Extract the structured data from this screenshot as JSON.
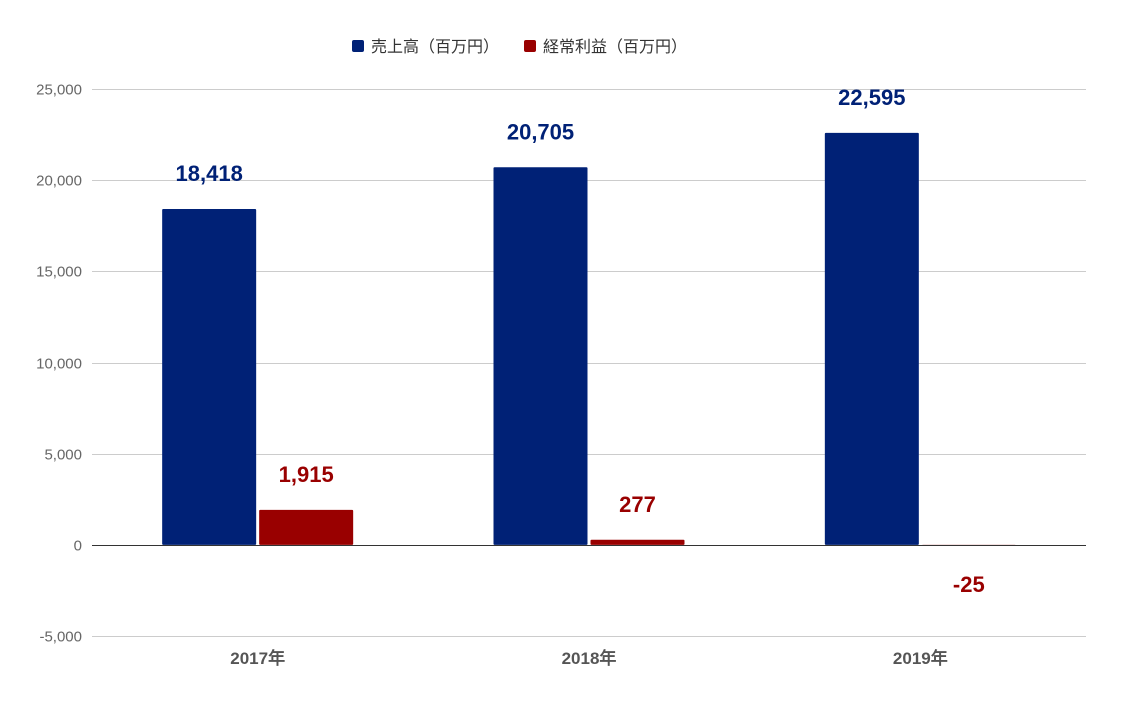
{
  "chart_data": {
    "type": "bar",
    "categories": [
      "2017年",
      "2018年",
      "2019年"
    ],
    "series": [
      {
        "name": "売上高（百万円）",
        "values": [
          18418,
          20705,
          22595
        ],
        "color": "#002176",
        "labels": [
          "18,418",
          "20,705",
          "22,595"
        ]
      },
      {
        "name": "経常利益（百万円）",
        "values": [
          1915,
          277,
          -25
        ],
        "color": "#990000",
        "labels": [
          "1,915",
          "277",
          "-25"
        ]
      }
    ],
    "title": "",
    "xlabel": "",
    "ylabel": "",
    "ylim": [
      -5000,
      25000
    ],
    "yticks": [
      25000,
      20000,
      15000,
      10000,
      5000,
      0,
      -5000
    ],
    "ytick_labels": [
      "25,000",
      "20,000",
      "15,000",
      "10,000",
      "5,000",
      "0",
      "-5,000"
    ],
    "grid": true,
    "legend_position": "top"
  }
}
